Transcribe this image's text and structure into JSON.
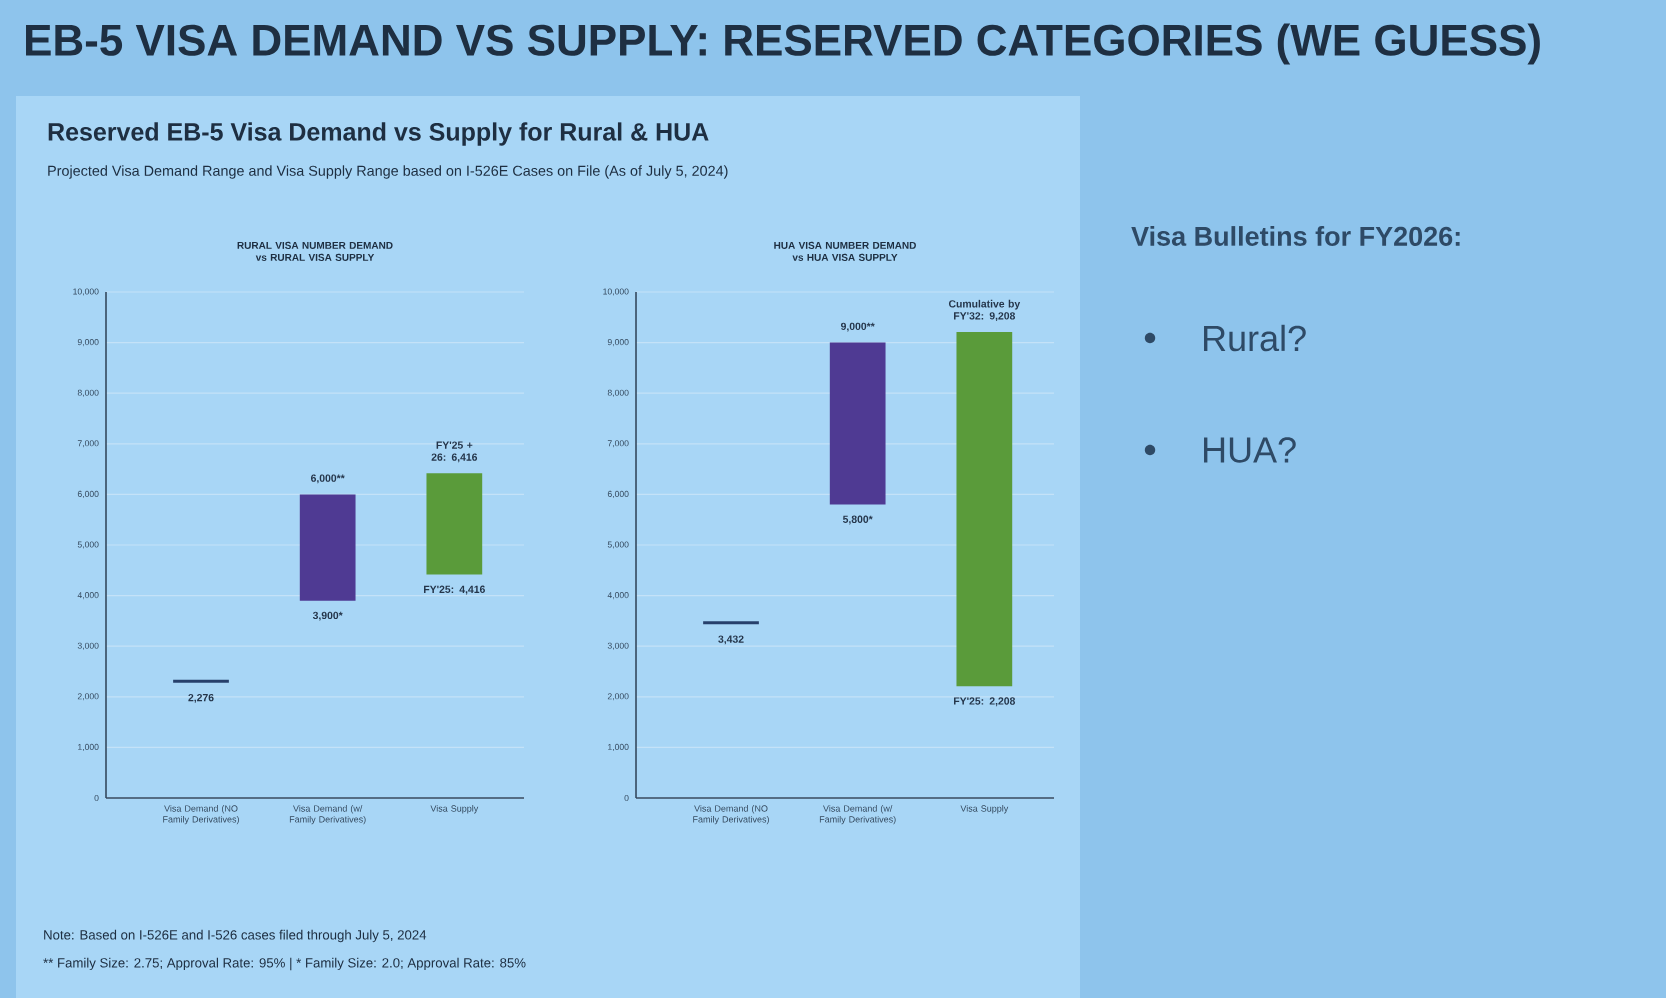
{
  "chart_data": [
    {
      "type": "other",
      "title": "EB-5 VISA DEMAND VS SUPPLY: RESERVED CATEGORIES (WE GUESS)",
      "subtitle": "Reserved EB-5 Visa Demand vs Supply for Rural & HUA",
      "annotations": [
        "Projected Visa Demand Range and Visa Supply Range based on I-526E Cases on File (As of July 5, 2024)",
        "Note: Based on I-526E and I-526 cases filed through July 5, 2024",
        "** Family Size: 2.75; Approval Rate: 95% | * Family Size: 2.0; Approval Rate: 85%"
      ]
    },
    {
      "type": "bar",
      "title": "RURAL VISA NUMBER DEMAND vs RURAL VISA SUPPLY",
      "categories": [
        "Visa Demand (NO Family Derivatives)",
        "Visa Demand (w/ Family Derivatives)",
        "Visa Supply"
      ],
      "base": [
        2276,
        3900,
        4416
      ],
      "values": [
        60,
        2100,
        2000
      ],
      "colors": [
        "#27406b",
        "#4f3a93",
        "#5a9b3a"
      ],
      "ylim": [
        0,
        10000
      ],
      "yticks": [
        0,
        {
          "value": 1000,
          "label": "1,000"
        },
        {
          "value": 2000,
          "label": "2,000"
        },
        {
          "value": 3000,
          "label": "3,000"
        },
        {
          "value": 4000,
          "label": "4,000"
        },
        {
          "value": 5000,
          "label": "5,000"
        },
        {
          "value": 6000,
          "label": "6,000"
        },
        {
          "value": 7000,
          "label": "7,000"
        },
        {
          "value": 8000,
          "label": "8,000"
        },
        {
          "value": 9000,
          "label": "9,000"
        },
        {
          "value": 10000,
          "label": "10,000"
        }
      ],
      "grid": "y",
      "annotations": [
        {
          "text": "2,276",
          "x": "Visa Demand (NO Family Derivatives)",
          "y": 2276
        },
        {
          "text": "6,000**",
          "x": "Visa Demand (w/ Family Derivatives)",
          "y": 6000
        },
        {
          "text": "3,900*",
          "x": "Visa Demand (w/ Family Derivatives)",
          "y": 3900
        },
        {
          "text": "FY'25 + 26: 6,416",
          "x": "Visa Supply",
          "y": 6416
        },
        {
          "text": "FY'25: 4,416",
          "x": "Visa Supply",
          "y": 4416
        }
      ]
    },
    {
      "type": "bar",
      "title": "HUA VISA NUMBER DEMAND vs HUA VISA SUPPLY",
      "categories": [
        "Visa Demand (NO Family Derivatives)",
        "Visa Demand (w/ Family Derivatives)",
        "Visa Supply"
      ],
      "base": [
        3432,
        5800,
        2208
      ],
      "values": [
        60,
        3200,
        7000
      ],
      "colors": [
        "#27406b",
        "#4f3a93",
        "#5a9b3a"
      ],
      "ylim": [
        0,
        10000
      ],
      "yticks": [
        0,
        {
          "value": 1000,
          "label": "1,000"
        },
        {
          "value": 2000,
          "label": "2,000"
        },
        {
          "value": 3000,
          "label": "3,000"
        },
        {
          "value": 4000,
          "label": "4,000"
        },
        {
          "value": 5000,
          "label": "5,000"
        },
        {
          "value": 6000,
          "label": "6,000"
        },
        {
          "value": 7000,
          "label": "7,000"
        },
        {
          "value": 8000,
          "label": "8,000"
        },
        {
          "value": 9000,
          "label": "9,000"
        },
        {
          "value": 10000,
          "label": "10,000"
        }
      ],
      "grid": "y",
      "annotations": [
        {
          "text": "3,432",
          "x": "Visa Demand (NO Family Derivatives)",
          "y": 3432
        },
        {
          "text": "9,000**",
          "x": "Visa Demand (w/ Family Derivatives)",
          "y": 9000
        },
        {
          "text": "5,800*",
          "x": "Visa Demand (w/ Family Derivatives)",
          "y": 5800
        },
        {
          "text": "Cumulative by FY'32: 9,208",
          "x": "Visa Supply",
          "y": 9208
        },
        {
          "text": "FY'25: 2,208",
          "x": "Visa Supply",
          "y": 2208
        }
      ]
    },
    {
      "type": "other",
      "title": "Visa Bulletins for FY2026:",
      "annotations": [
        "Rural?",
        "HUA?"
      ]
    }
  ]
}
